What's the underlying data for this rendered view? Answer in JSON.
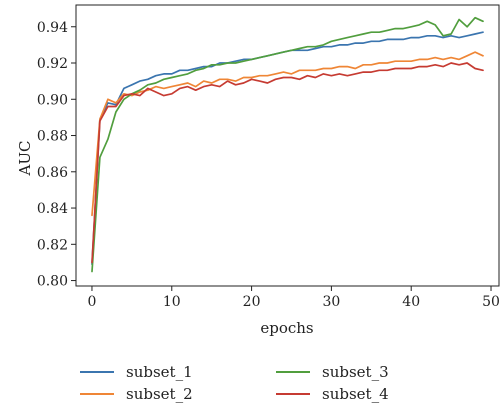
{
  "chart_data": {
    "type": "line",
    "xlabel": "epochs",
    "ylabel": "AUC",
    "xlim": [
      -2,
      51
    ],
    "ylim": [
      0.797,
      0.952
    ],
    "xticks": [
      0,
      10,
      20,
      30,
      40,
      50
    ],
    "yticks": [
      0.8,
      0.82,
      0.84,
      0.86,
      0.88,
      0.9,
      0.92,
      0.94
    ],
    "ytick_labels": [
      "0.80",
      "0.82",
      "0.84",
      "0.86",
      "0.88",
      "0.90",
      "0.92",
      "0.94"
    ],
    "grid": false,
    "legend_position": "bottom",
    "x": [
      0,
      1,
      2,
      3,
      4,
      5,
      6,
      7,
      8,
      9,
      10,
      11,
      12,
      13,
      14,
      15,
      16,
      17,
      18,
      19,
      20,
      21,
      22,
      23,
      24,
      25,
      26,
      27,
      28,
      29,
      30,
      31,
      32,
      33,
      34,
      35,
      36,
      37,
      38,
      39,
      40,
      41,
      42,
      43,
      44,
      45,
      46,
      47,
      48,
      49
    ],
    "series": [
      {
        "name": "subset_1",
        "color": "#3b75af",
        "values": [
          0.809,
          0.889,
          0.898,
          0.897,
          0.906,
          0.908,
          0.91,
          0.911,
          0.913,
          0.914,
          0.914,
          0.916,
          0.916,
          0.917,
          0.918,
          0.918,
          0.92,
          0.92,
          0.921,
          0.922,
          0.922,
          0.923,
          0.924,
          0.925,
          0.926,
          0.927,
          0.927,
          0.927,
          0.928,
          0.929,
          0.929,
          0.93,
          0.93,
          0.931,
          0.931,
          0.932,
          0.932,
          0.933,
          0.933,
          0.933,
          0.934,
          0.934,
          0.935,
          0.935,
          0.934,
          0.935,
          0.934,
          0.935,
          0.936,
          0.937
        ]
      },
      {
        "name": "subset_2",
        "color": "#ef8636",
        "values": [
          0.836,
          0.889,
          0.9,
          0.898,
          0.903,
          0.902,
          0.904,
          0.905,
          0.907,
          0.906,
          0.907,
          0.908,
          0.909,
          0.907,
          0.91,
          0.909,
          0.911,
          0.911,
          0.91,
          0.912,
          0.912,
          0.913,
          0.913,
          0.914,
          0.915,
          0.914,
          0.916,
          0.916,
          0.916,
          0.917,
          0.917,
          0.918,
          0.918,
          0.917,
          0.919,
          0.919,
          0.92,
          0.92,
          0.921,
          0.921,
          0.921,
          0.922,
          0.922,
          0.923,
          0.922,
          0.923,
          0.922,
          0.924,
          0.926,
          0.924
        ]
      },
      {
        "name": "subset_3",
        "color": "#519e3e",
        "values": [
          0.805,
          0.868,
          0.878,
          0.893,
          0.9,
          0.903,
          0.905,
          0.908,
          0.909,
          0.911,
          0.912,
          0.913,
          0.914,
          0.916,
          0.917,
          0.919,
          0.919,
          0.92,
          0.92,
          0.921,
          0.922,
          0.923,
          0.924,
          0.925,
          0.926,
          0.927,
          0.928,
          0.929,
          0.929,
          0.93,
          0.932,
          0.933,
          0.934,
          0.935,
          0.936,
          0.937,
          0.937,
          0.938,
          0.939,
          0.939,
          0.94,
          0.941,
          0.943,
          0.941,
          0.935,
          0.936,
          0.944,
          0.94,
          0.945,
          0.943
        ]
      },
      {
        "name": "subset_4",
        "color": "#c63b32",
        "values": [
          0.81,
          0.888,
          0.896,
          0.896,
          0.902,
          0.903,
          0.902,
          0.906,
          0.904,
          0.902,
          0.903,
          0.906,
          0.907,
          0.905,
          0.907,
          0.908,
          0.907,
          0.91,
          0.908,
          0.909,
          0.911,
          0.91,
          0.909,
          0.911,
          0.912,
          0.912,
          0.911,
          0.913,
          0.912,
          0.914,
          0.913,
          0.914,
          0.913,
          0.914,
          0.915,
          0.915,
          0.916,
          0.916,
          0.917,
          0.917,
          0.917,
          0.918,
          0.918,
          0.919,
          0.918,
          0.92,
          0.919,
          0.92,
          0.917,
          0.916
        ]
      }
    ]
  }
}
